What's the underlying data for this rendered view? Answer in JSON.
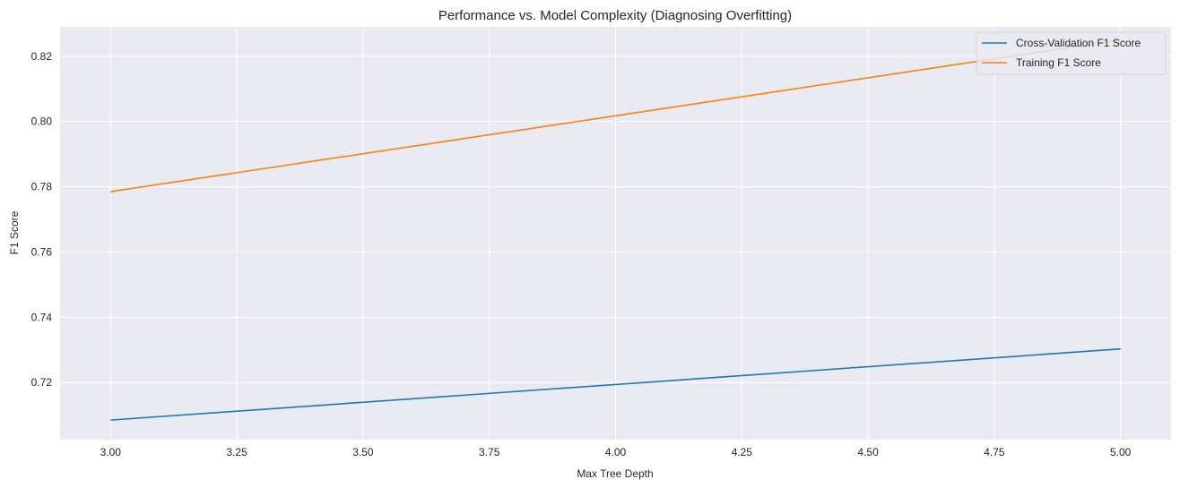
{
  "chart_data": {
    "type": "line",
    "title": "Performance vs. Model Complexity (Diagnosing Overfitting)",
    "xlabel": "Max Tree Depth",
    "ylabel": "F1 Score",
    "x": [
      3,
      5
    ],
    "xlim": [
      2.9,
      5.1
    ],
    "ylim": [
      0.7025,
      0.829
    ],
    "xticks": [
      3.0,
      3.25,
      3.5,
      3.75,
      4.0,
      4.25,
      4.5,
      4.75,
      5.0
    ],
    "xtick_labels": [
      "3.00",
      "3.25",
      "3.50",
      "3.75",
      "4.00",
      "4.25",
      "4.50",
      "4.75",
      "5.00"
    ],
    "yticks": [
      0.72,
      0.74,
      0.76,
      0.78,
      0.8,
      0.82
    ],
    "ytick_labels": [
      "0.72",
      "0.74",
      "0.76",
      "0.78",
      "0.80",
      "0.82"
    ],
    "grid": true,
    "legend_position": "top-right",
    "background_color": "#eaeaf2",
    "series": [
      {
        "name": "Cross-Validation F1 Score",
        "values": [
          0.7085,
          0.7303
        ],
        "color": "#1f77b4"
      },
      {
        "name": "Training F1 Score",
        "values": [
          0.7785,
          0.825
        ],
        "color": "#ff7f0e"
      }
    ]
  }
}
